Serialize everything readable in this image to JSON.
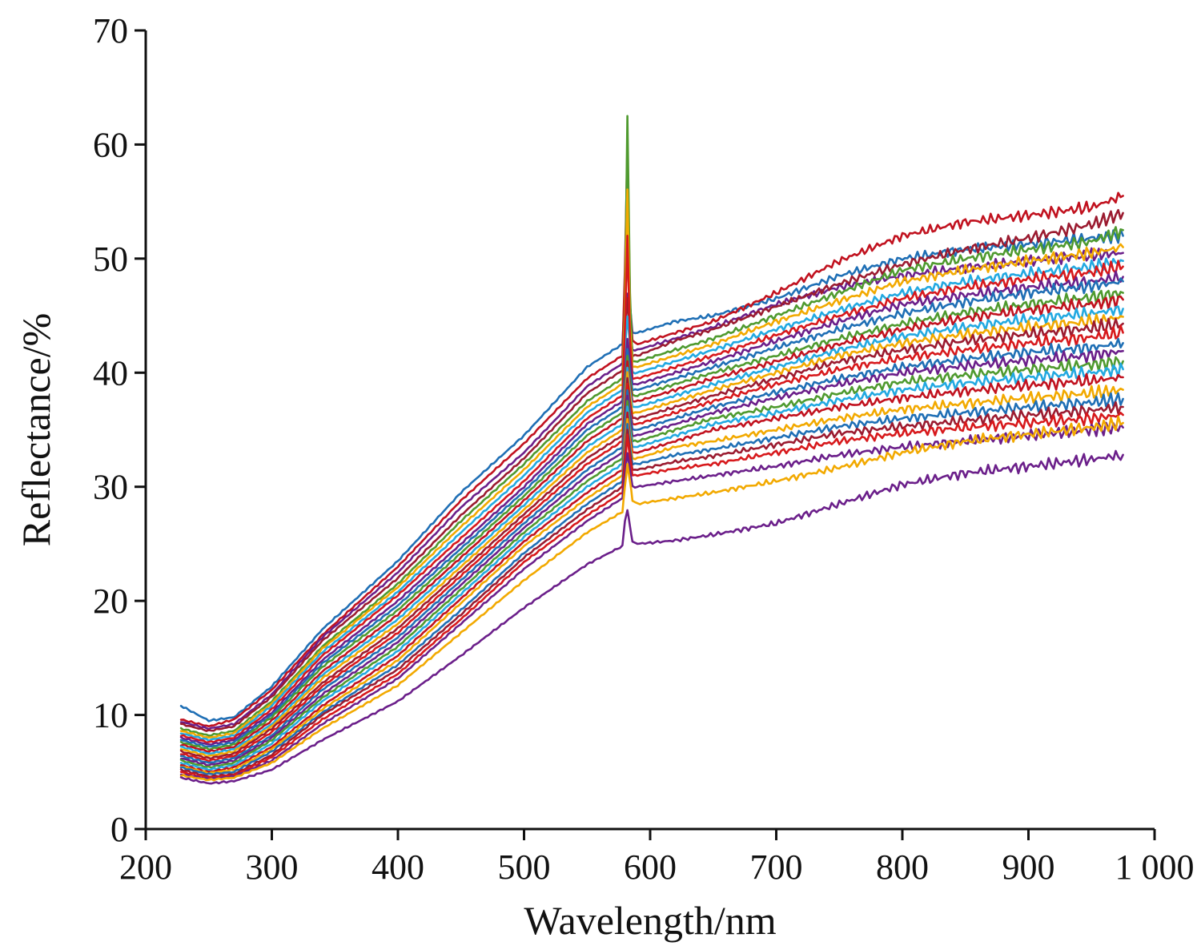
{
  "chart_data": {
    "type": "line",
    "title": "",
    "xlabel": "Wavelength/nm",
    "ylabel": "Reflectance/%",
    "xlim": [
      200,
      1000
    ],
    "ylim": [
      0,
      70
    ],
    "x_ticks": [
      {
        "value": 200,
        "label": "200"
      },
      {
        "value": 300,
        "label": "300"
      },
      {
        "value": 400,
        "label": "400"
      },
      {
        "value": 500,
        "label": "500"
      },
      {
        "value": 600,
        "label": "600"
      },
      {
        "value": 700,
        "label": "700"
      },
      {
        "value": 800,
        "label": "800"
      },
      {
        "value": 900,
        "label": "900"
      },
      {
        "value": 1000,
        "label": "1 000"
      }
    ],
    "y_ticks": [
      {
        "value": 0,
        "label": "0"
      },
      {
        "value": 10,
        "label": "10"
      },
      {
        "value": 20,
        "label": "20"
      },
      {
        "value": 30,
        "label": "30"
      },
      {
        "value": 40,
        "label": "40"
      },
      {
        "value": 50,
        "label": "50"
      },
      {
        "value": 60,
        "label": "60"
      },
      {
        "value": 70,
        "label": "70"
      }
    ],
    "grid": false,
    "legend": "none",
    "x": [
      228,
      250,
      270,
      300,
      340,
      400,
      450,
      500,
      550,
      578,
      580,
      582,
      584,
      586,
      590,
      620,
      650,
      700,
      750,
      800,
      850,
      900,
      950,
      975
    ],
    "series": [
      {
        "color": "#1f6fb5",
        "values": [
          10.8,
          9.5,
          9.8,
          12.5,
          17.5,
          23.5,
          29.5,
          34.5,
          40.5,
          42.5,
          47.0,
          50.0,
          46.0,
          43.5,
          43.5,
          44.5,
          45.0,
          46.5,
          48.5,
          50.0,
          50.8,
          51.3,
          51.8,
          52.0
        ]
      },
      {
        "color": "#c1121f",
        "values": [
          9.6,
          9.0,
          9.6,
          12.2,
          17.0,
          23.0,
          28.8,
          33.8,
          39.5,
          41.5,
          49.0,
          60.0,
          46.0,
          42.8,
          42.5,
          43.5,
          44.5,
          47.0,
          49.8,
          52.0,
          53.2,
          53.8,
          54.5,
          55.5
        ]
      },
      {
        "color": "#6b1f8a",
        "values": [
          9.4,
          8.8,
          9.2,
          11.8,
          16.8,
          22.5,
          28.2,
          33.0,
          38.8,
          40.8,
          44.0,
          47.0,
          44.0,
          42.0,
          42.0,
          43.0,
          44.0,
          46.0,
          47.5,
          48.5,
          49.2,
          49.8,
          50.3,
          50.5
        ]
      },
      {
        "color": "#9b1b30",
        "values": [
          9.2,
          8.6,
          9.0,
          11.6,
          16.5,
          22.0,
          27.5,
          32.5,
          38.2,
          40.2,
          43.5,
          46.5,
          43.5,
          41.5,
          41.5,
          42.8,
          43.8,
          45.8,
          47.8,
          49.5,
          50.8,
          51.8,
          53.0,
          54.0
        ]
      },
      {
        "color": "#4f9a2f",
        "values": [
          8.8,
          8.2,
          8.6,
          11.2,
          16.0,
          21.5,
          27.0,
          32.0,
          37.5,
          39.5,
          46.0,
          62.5,
          47.0,
          41.0,
          41.0,
          42.0,
          43.0,
          45.0,
          47.0,
          49.0,
          50.0,
          50.8,
          51.5,
          52.5
        ]
      },
      {
        "color": "#f2a900",
        "values": [
          8.6,
          8.0,
          8.4,
          11.0,
          15.8,
          21.2,
          26.5,
          31.5,
          37.0,
          39.0,
          45.0,
          56.0,
          44.0,
          40.5,
          40.5,
          41.5,
          42.5,
          44.5,
          46.3,
          48.0,
          49.0,
          49.8,
          50.5,
          51.0
        ]
      },
      {
        "color": "#23a9e1",
        "values": [
          8.4,
          7.8,
          8.2,
          10.8,
          15.5,
          20.8,
          26.0,
          31.0,
          36.5,
          38.5,
          42.0,
          45.0,
          42.5,
          40.0,
          40.0,
          41.0,
          42.0,
          43.8,
          45.5,
          47.0,
          48.0,
          48.7,
          49.3,
          49.8
        ]
      },
      {
        "color": "#d7191c",
        "values": [
          8.2,
          7.6,
          8.0,
          10.5,
          15.2,
          20.5,
          25.5,
          30.5,
          36.0,
          38.0,
          44.0,
          52.0,
          43.0,
          39.5,
          39.5,
          40.5,
          41.5,
          43.3,
          45.0,
          46.5,
          47.5,
          48.2,
          48.8,
          49.3
        ]
      },
      {
        "color": "#6b1f8a",
        "values": [
          8.0,
          7.4,
          7.8,
          10.2,
          14.8,
          20.0,
          25.0,
          30.0,
          35.5,
          37.5,
          40.0,
          43.0,
          41.0,
          39.0,
          39.0,
          40.0,
          41.0,
          42.8,
          44.5,
          46.0,
          46.8,
          47.5,
          48.0,
          48.4
        ]
      },
      {
        "color": "#1f6fb5",
        "values": [
          7.8,
          7.2,
          7.6,
          10.0,
          14.5,
          19.6,
          24.6,
          29.6,
          35.0,
          37.0,
          39.5,
          42.0,
          40.0,
          38.5,
          38.5,
          39.5,
          40.5,
          42.2,
          43.8,
          45.2,
          46.2,
          47.0,
          47.6,
          48.0
        ]
      },
      {
        "color": "#4f9a2f",
        "values": [
          7.6,
          7.0,
          7.4,
          9.8,
          14.2,
          19.2,
          24.2,
          29.2,
          34.5,
          36.5,
          39.0,
          41.5,
          39.5,
          38.0,
          38.0,
          39.0,
          40.0,
          41.5,
          43.0,
          44.3,
          45.3,
          46.0,
          46.6,
          47.0
        ]
      },
      {
        "color": "#c1121f",
        "values": [
          7.4,
          6.8,
          7.2,
          9.5,
          13.8,
          18.8,
          23.8,
          28.8,
          34.0,
          36.0,
          38.5,
          41.0,
          39.0,
          37.5,
          37.5,
          38.5,
          39.5,
          41.0,
          42.5,
          43.8,
          44.8,
          45.5,
          46.0,
          46.4
        ]
      },
      {
        "color": "#23a9e1",
        "values": [
          7.2,
          6.6,
          7.0,
          9.2,
          13.5,
          18.4,
          23.4,
          28.4,
          33.5,
          35.5,
          38.0,
          40.5,
          38.5,
          37.0,
          37.0,
          38.0,
          39.0,
          40.5,
          42.0,
          43.2,
          44.0,
          44.7,
          45.2,
          45.6
        ]
      },
      {
        "color": "#f2a900",
        "values": [
          7.0,
          6.4,
          6.8,
          9.0,
          13.2,
          18.0,
          23.0,
          28.0,
          33.0,
          35.0,
          37.5,
          40.0,
          38.0,
          36.5,
          36.5,
          37.5,
          38.5,
          40.0,
          41.5,
          42.6,
          43.4,
          44.0,
          44.5,
          44.9
        ]
      },
      {
        "color": "#9b1b30",
        "values": [
          6.8,
          6.2,
          6.6,
          8.8,
          12.8,
          17.6,
          22.6,
          27.6,
          32.5,
          34.5,
          37.0,
          39.5,
          37.5,
          36.0,
          36.0,
          37.0,
          38.0,
          39.5,
          41.0,
          42.0,
          42.8,
          43.4,
          43.9,
          44.3
        ]
      },
      {
        "color": "#d7191c",
        "values": [
          6.6,
          6.0,
          6.4,
          8.5,
          12.5,
          17.2,
          22.2,
          27.2,
          32.0,
          34.0,
          36.5,
          39.0,
          37.0,
          35.5,
          35.5,
          36.5,
          37.5,
          39.0,
          40.3,
          41.3,
          42.0,
          42.6,
          43.1,
          43.5
        ]
      },
      {
        "color": "#1f6fb5",
        "values": [
          6.4,
          5.8,
          6.2,
          8.2,
          12.2,
          16.8,
          21.8,
          26.8,
          31.5,
          33.5,
          36.0,
          38.5,
          36.5,
          35.0,
          35.0,
          36.0,
          37.0,
          38.3,
          39.5,
          40.5,
          41.2,
          41.8,
          42.2,
          42.6
        ]
      },
      {
        "color": "#6b1f8a",
        "values": [
          6.2,
          5.6,
          6.0,
          8.0,
          11.8,
          16.4,
          21.4,
          26.4,
          31.0,
          33.0,
          35.5,
          38.0,
          36.0,
          34.5,
          34.5,
          35.5,
          36.5,
          37.8,
          39.0,
          40.0,
          40.6,
          41.1,
          41.5,
          41.9
        ]
      },
      {
        "color": "#4f9a2f",
        "values": [
          6.0,
          5.4,
          5.8,
          7.8,
          11.5,
          16.0,
          21.0,
          26.0,
          30.5,
          32.5,
          35.0,
          37.5,
          35.5,
          34.0,
          34.0,
          35.0,
          36.0,
          37.0,
          38.2,
          39.2,
          39.8,
          40.3,
          40.7,
          41.0
        ]
      },
      {
        "color": "#23a9e1",
        "values": [
          5.8,
          5.2,
          5.6,
          7.5,
          11.2,
          15.6,
          20.6,
          25.6,
          30.0,
          32.0,
          34.5,
          37.0,
          35.0,
          33.5,
          33.5,
          34.5,
          35.5,
          36.5,
          37.6,
          38.5,
          39.1,
          39.6,
          40.0,
          40.3
        ]
      },
      {
        "color": "#c1121f",
        "values": [
          5.6,
          5.0,
          5.4,
          7.2,
          10.8,
          15.2,
          20.2,
          25.2,
          29.5,
          31.5,
          34.0,
          36.5,
          34.5,
          33.0,
          33.0,
          34.0,
          35.0,
          36.0,
          37.0,
          37.8,
          38.4,
          38.9,
          39.3,
          39.6
        ]
      },
      {
        "color": "#f2a900",
        "values": [
          5.5,
          4.9,
          5.2,
          7.0,
          10.5,
          14.8,
          19.8,
          24.8,
          29.0,
          31.0,
          33.5,
          36.0,
          34.0,
          32.5,
          32.5,
          33.5,
          34.0,
          35.0,
          36.0,
          36.8,
          37.3,
          37.8,
          38.2,
          38.5
        ]
      },
      {
        "color": "#1f6fb5",
        "values": [
          5.4,
          4.8,
          5.0,
          6.8,
          10.2,
          14.4,
          19.2,
          24.2,
          28.5,
          30.5,
          33.0,
          35.5,
          33.5,
          32.0,
          32.0,
          32.8,
          33.3,
          34.3,
          35.3,
          36.0,
          36.5,
          37.0,
          37.4,
          37.7
        ]
      },
      {
        "color": "#9b1b30",
        "values": [
          5.2,
          4.6,
          4.8,
          6.5,
          10.0,
          14.0,
          18.8,
          23.8,
          28.0,
          30.0,
          32.5,
          35.0,
          33.0,
          31.5,
          31.5,
          32.2,
          32.7,
          33.7,
          34.7,
          35.3,
          35.8,
          36.3,
          36.7,
          37.0
        ]
      },
      {
        "color": "#d7191c",
        "values": [
          5.0,
          4.5,
          4.7,
          6.3,
          9.6,
          13.6,
          18.4,
          23.4,
          27.5,
          29.5,
          32.0,
          34.5,
          32.5,
          31.0,
          31.0,
          31.6,
          32.0,
          33.0,
          34.0,
          34.7,
          35.2,
          35.6,
          36.0,
          36.3
        ]
      },
      {
        "color": "#6b1f8a",
        "values": [
          4.8,
          4.4,
          4.6,
          6.0,
          9.2,
          13.2,
          18.0,
          22.8,
          27.0,
          29.0,
          31.0,
          33.0,
          31.5,
          30.0,
          30.0,
          30.5,
          31.0,
          31.8,
          32.8,
          33.5,
          34.0,
          34.5,
          35.0,
          35.2
        ]
      },
      {
        "color": "#f2a900",
        "values": [
          4.7,
          4.3,
          4.5,
          5.8,
          8.8,
          12.6,
          17.2,
          21.8,
          26.0,
          27.8,
          30.0,
          32.0,
          30.5,
          28.8,
          28.5,
          29.0,
          29.5,
          30.5,
          31.7,
          33.0,
          34.0,
          34.6,
          35.2,
          35.6
        ]
      },
      {
        "color": "#6b1f8a",
        "values": [
          4.5,
          4.0,
          4.2,
          5.2,
          7.8,
          11.2,
          15.2,
          19.4,
          23.2,
          24.8,
          27.0,
          28.0,
          26.5,
          25.2,
          25.0,
          25.3,
          25.8,
          26.8,
          28.5,
          30.2,
          31.2,
          31.8,
          32.4,
          32.8
        ]
      }
    ]
  }
}
